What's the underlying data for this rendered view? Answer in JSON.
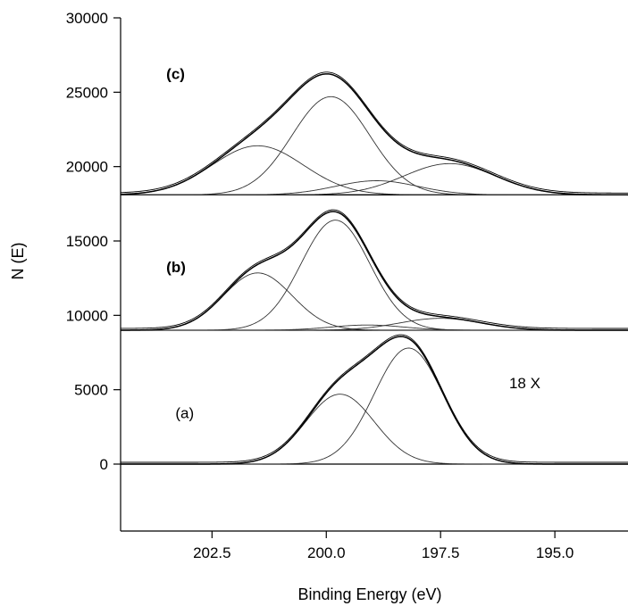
{
  "chart_data": {
    "type": "line",
    "xlabel": "Binding Energy (eV)",
    "ylabel": "N (E)",
    "xlim": [
      204.5,
      193.4
    ],
    "ylim": [
      -4500,
      30000
    ],
    "x_reversed": true,
    "x_ticks": [
      202.5,
      200.0,
      197.5,
      195.0
    ],
    "x_tick_labels": [
      "202.5",
      "200.0",
      "197.5",
      "195.0"
    ],
    "y_ticks": [
      0,
      5000,
      10000,
      15000,
      20000,
      25000,
      30000
    ],
    "y_tick_labels": [
      "0",
      "5000",
      "10000",
      "15000",
      "20000",
      "25000",
      "30000"
    ],
    "grid": false,
    "annotations": [
      {
        "text": "(c)",
        "x": 203.5,
        "y": 25900,
        "bold": true
      },
      {
        "text": "(b)",
        "x": 203.5,
        "y": 12900,
        "bold": true
      },
      {
        "text": "(a)",
        "x": 203.3,
        "y": 3100,
        "bold": false
      },
      {
        "text": "18 X",
        "x": 196.0,
        "y": 5100,
        "bold": false
      }
    ],
    "spectra": [
      {
        "label": "(c)",
        "baseline": 18100,
        "components": [
          {
            "center": 201.5,
            "amplitude": 3300,
            "sigma": 1.0
          },
          {
            "center": 199.9,
            "amplitude": 6600,
            "sigma": 0.85
          },
          {
            "center": 198.9,
            "amplitude": 950,
            "sigma": 0.9
          },
          {
            "center": 197.3,
            "amplitude": 2100,
            "sigma": 1.0
          }
        ]
      },
      {
        "label": "(b)",
        "baseline": 9000,
        "components": [
          {
            "center": 201.5,
            "amplitude": 3850,
            "sigma": 0.75
          },
          {
            "center": 199.8,
            "amplitude": 7400,
            "sigma": 0.75
          },
          {
            "center": 199.1,
            "amplitude": 350,
            "sigma": 0.8
          },
          {
            "center": 197.5,
            "amplitude": 800,
            "sigma": 0.9
          }
        ]
      },
      {
        "label": "(a)",
        "baseline": 0,
        "components": [
          {
            "center": 199.7,
            "amplitude": 4700,
            "sigma": 0.75
          },
          {
            "center": 198.2,
            "amplitude": 7800,
            "sigma": 0.75
          }
        ]
      }
    ]
  }
}
